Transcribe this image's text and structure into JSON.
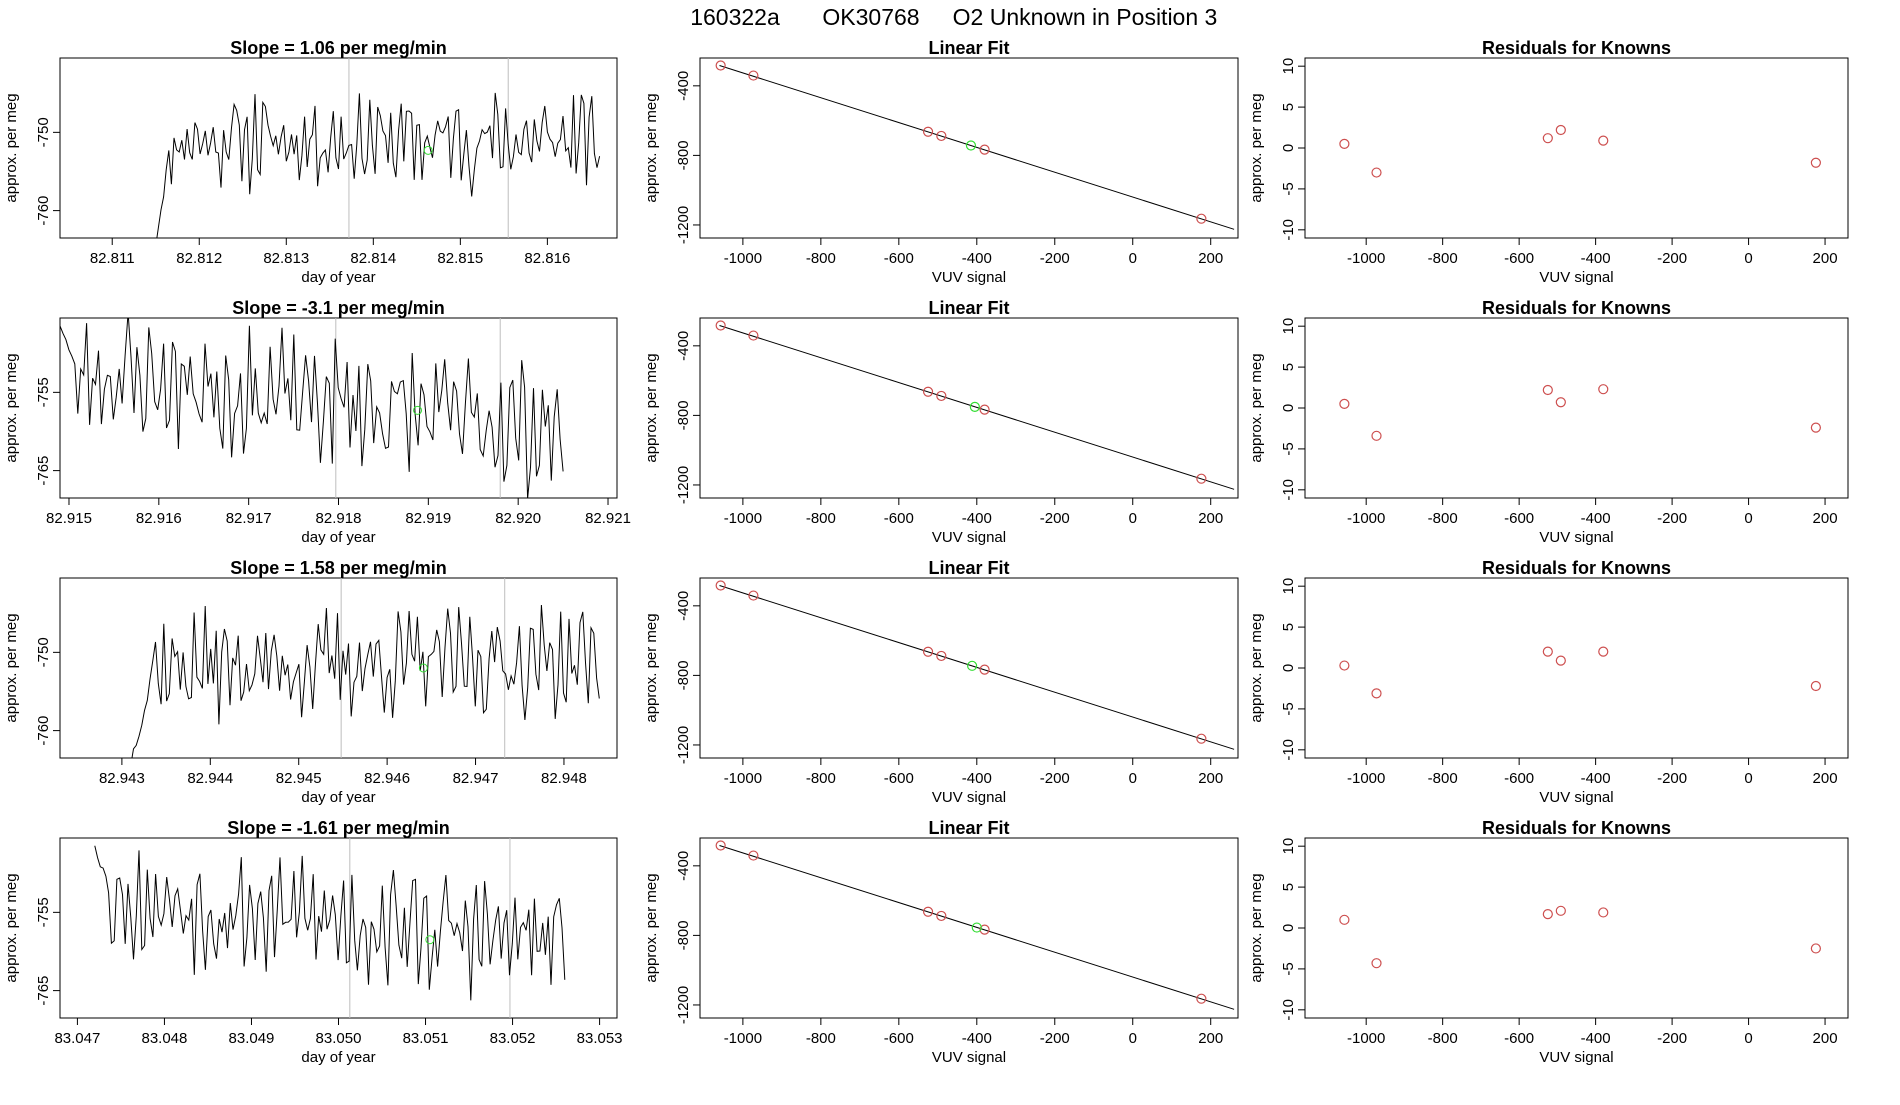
{
  "header": {
    "run": "160322a",
    "tank": "OK30768",
    "description": "O2 Unknown in Position  3"
  },
  "chart_data": [
    {
      "type": "line",
      "title": "Slope =  1.06  per meg/min",
      "xlabel": "day of year",
      "ylabel": "approx. per meg",
      "xlim": [
        82.8104,
        82.8168
      ],
      "ylim": [
        -763.5,
        -740.5
      ],
      "xticks": [
        "82.811",
        "82.812",
        "82.813",
        "82.814",
        "82.815",
        "82.816"
      ],
      "xtick_values": [
        82.811,
        82.812,
        82.813,
        82.814,
        82.815,
        82.816
      ],
      "yticks": [
        "-750",
        "-760"
      ],
      "ytick_values": [
        -750,
        -760
      ],
      "trace": {
        "start": 82.8115,
        "end": 82.8166,
        "base": -751,
        "amplitude": 4.5,
        "seed": 11,
        "lead_from": -764,
        "lead_to": -753,
        "drift": 0
      },
      "vlines": [
        82.81372,
        82.81555
      ],
      "unknown_point": {
        "x": 82.81463,
        "y": -752.3
      }
    },
    {
      "type": "line",
      "title": "Slope =  -3.1  per meg/min",
      "xlabel": "day of year",
      "ylabel": "approx. per meg",
      "xlim": [
        82.9149,
        82.9211
      ],
      "ylim": [
        -768.5,
        -745.5
      ],
      "xticks": [
        "82.915",
        "82.916",
        "82.917",
        "82.918",
        "82.919",
        "82.920",
        "82.921"
      ],
      "xtick_values": [
        82.915,
        82.916,
        82.917,
        82.918,
        82.919,
        82.92,
        82.921
      ],
      "yticks": [
        "-755",
        "-765"
      ],
      "ytick_values": [
        -755,
        -765
      ],
      "trace": {
        "start": 82.9149,
        "end": 82.9205,
        "base": -752,
        "amplitude": 6,
        "seed": 23,
        "lead_from": -746,
        "lead_to": -752,
        "drift": -8
      },
      "vlines": [
        82.91797,
        82.9198
      ],
      "unknown_point": {
        "x": 82.91888,
        "y": -757.3
      }
    },
    {
      "type": "line",
      "title": "Slope =  1.58  per meg/min",
      "xlabel": "day of year",
      "ylabel": "approx. per meg",
      "xlim": [
        82.9423,
        82.9486
      ],
      "ylim": [
        -763.5,
        -740.5
      ],
      "xticks": [
        "82.943",
        "82.944",
        "82.945",
        "82.946",
        "82.947",
        "82.948"
      ],
      "xtick_values": [
        82.943,
        82.944,
        82.945,
        82.946,
        82.947,
        82.948
      ],
      "yticks": [
        "-750",
        "-760"
      ],
      "ytick_values": [
        -750,
        -760
      ],
      "trace": {
        "start": 82.9431,
        "end": 82.9484,
        "base": -752,
        "amplitude": 5,
        "seed": 37,
        "lead_from": -764,
        "lead_to": -757,
        "drift": 1
      },
      "vlines": [
        82.94548,
        82.94733
      ],
      "unknown_point": {
        "x": 82.94641,
        "y": -752.0
      }
    },
    {
      "type": "line",
      "title": "Slope =  -1.61  per meg/min",
      "xlabel": "day of year",
      "ylabel": "approx. per meg",
      "xlim": [
        83.0468,
        83.0532
      ],
      "ylim": [
        -768.5,
        -745.5
      ],
      "xticks": [
        "83.047",
        "83.048",
        "83.049",
        "83.050",
        "83.051",
        "83.052",
        "83.053"
      ],
      "xtick_values": [
        83.047,
        83.048,
        83.049,
        83.05,
        83.051,
        83.052,
        83.053
      ],
      "yticks": [
        "-755",
        "-765"
      ],
      "ytick_values": [
        -755,
        -765
      ],
      "trace": {
        "start": 83.0472,
        "end": 83.0526,
        "base": -753,
        "amplitude": 5.5,
        "seed": 53,
        "lead_from": -746,
        "lead_to": -752,
        "drift": -6
      },
      "vlines": [
        83.05013,
        83.05197
      ],
      "unknown_point": {
        "x": 83.05105,
        "y": -758.5
      }
    },
    {
      "type": "scatter",
      "title": "Linear Fit",
      "xlabel": "VUV signal",
      "ylabel": "approx. per meg",
      "xlim": [
        -1110,
        270
      ],
      "ylim": [
        -1275,
        -240
      ],
      "xticks": [
        "-1000",
        "-800",
        "-600",
        "-400",
        "-200",
        "0",
        "200"
      ],
      "xtick_values": [
        -1000,
        -800,
        -600,
        -400,
        -200,
        0,
        200
      ],
      "yticks": [
        "-400",
        "-800",
        "-1200"
      ],
      "ytick_values": [
        -400,
        -800,
        -1200
      ],
      "fit_line": {
        "x": [
          -1060,
          260
        ],
        "y": [
          -283,
          -1225
        ]
      },
      "knowns": {
        "x": [
          -1057,
          -973,
          -525,
          -491,
          -380,
          176
        ],
        "y": [
          -283,
          -341,
          -664,
          -688,
          -767,
          -1164
        ]
      },
      "unknown": {
        "x": [
          -415
        ],
        "y": [
          -743
        ]
      }
    },
    {
      "type": "scatter",
      "title": "Linear Fit",
      "xlabel": "VUV signal",
      "ylabel": "approx. per meg",
      "xlim": [
        -1110,
        270
      ],
      "ylim": [
        -1275,
        -240
      ],
      "xticks": [
        "-1000",
        "-800",
        "-600",
        "-400",
        "-200",
        "0",
        "200"
      ],
      "xtick_values": [
        -1000,
        -800,
        -600,
        -400,
        -200,
        0,
        200
      ],
      "yticks": [
        "-400",
        "-800",
        "-1200"
      ],
      "ytick_values": [
        -400,
        -800,
        -1200
      ],
      "fit_line": {
        "x": [
          -1060,
          260
        ],
        "y": [
          -283,
          -1225
        ]
      },
      "knowns": {
        "x": [
          -1057,
          -973,
          -525,
          -491,
          -380,
          176
        ],
        "y": [
          -283,
          -341,
          -664,
          -688,
          -767,
          -1164
        ]
      },
      "unknown": {
        "x": [
          -405
        ],
        "y": [
          -751
        ]
      }
    },
    {
      "type": "scatter",
      "title": "Linear Fit",
      "xlabel": "VUV signal",
      "ylabel": "approx. per meg",
      "xlim": [
        -1110,
        270
      ],
      "ylim": [
        -1275,
        -240
      ],
      "xticks": [
        "-1000",
        "-800",
        "-600",
        "-400",
        "-200",
        "0",
        "200"
      ],
      "xtick_values": [
        -1000,
        -800,
        -600,
        -400,
        -200,
        0,
        200
      ],
      "yticks": [
        "-400",
        "-800",
        "-1200"
      ],
      "ytick_values": [
        -400,
        -800,
        -1200
      ],
      "fit_line": {
        "x": [
          -1060,
          260
        ],
        "y": [
          -283,
          -1225
        ]
      },
      "knowns": {
        "x": [
          -1057,
          -973,
          -525,
          -491,
          -380,
          176
        ],
        "y": [
          -283,
          -341,
          -664,
          -688,
          -767,
          -1164
        ]
      },
      "unknown": {
        "x": [
          -412
        ],
        "y": [
          -745
        ]
      }
    },
    {
      "type": "scatter",
      "title": "Linear Fit",
      "xlabel": "VUV signal",
      "ylabel": "approx. per meg",
      "xlim": [
        -1110,
        270
      ],
      "ylim": [
        -1275,
        -240
      ],
      "xticks": [
        "-1000",
        "-800",
        "-600",
        "-400",
        "-200",
        "0",
        "200"
      ],
      "xtick_values": [
        -1000,
        -800,
        -600,
        -400,
        -200,
        0,
        200
      ],
      "yticks": [
        "-400",
        "-800",
        "-1200"
      ],
      "ytick_values": [
        -400,
        -800,
        -1200
      ],
      "fit_line": {
        "x": [
          -1060,
          260
        ],
        "y": [
          -283,
          -1225
        ]
      },
      "knowns": {
        "x": [
          -1057,
          -973,
          -525,
          -491,
          -380,
          176
        ],
        "y": [
          -283,
          -341,
          -664,
          -688,
          -767,
          -1164
        ]
      },
      "unknown": {
        "x": [
          -400
        ],
        "y": [
          -755
        ]
      }
    },
    {
      "type": "scatter",
      "title": "Residuals for Knowns",
      "xlabel": "VUV signal",
      "ylabel": "approx. per meg",
      "xlim": [
        -1160,
        260
      ],
      "ylim": [
        -11,
        11
      ],
      "xticks": [
        "-1000",
        "-800",
        "-600",
        "-400",
        "-200",
        "0",
        "200"
      ],
      "xtick_values": [
        -1000,
        -800,
        -600,
        -400,
        -200,
        0,
        200
      ],
      "yticks": [
        "10",
        "5",
        "0",
        "-5",
        "-10"
      ],
      "ytick_values": [
        10,
        5,
        0,
        -5,
        -10
      ],
      "knowns": {
        "x": [
          -1057,
          -973,
          -525,
          -491,
          -380,
          176
        ],
        "y": [
          0.5,
          -3.0,
          1.2,
          2.2,
          0.9,
          -1.8
        ]
      }
    },
    {
      "type": "scatter",
      "title": "Residuals for Knowns",
      "xlabel": "VUV signal",
      "ylabel": "approx. per meg",
      "xlim": [
        -1160,
        260
      ],
      "ylim": [
        -11,
        11
      ],
      "xticks": [
        "-1000",
        "-800",
        "-600",
        "-400",
        "-200",
        "0",
        "200"
      ],
      "xtick_values": [
        -1000,
        -800,
        -600,
        -400,
        -200,
        0,
        200
      ],
      "yticks": [
        "10",
        "5",
        "0",
        "-5",
        "-10"
      ],
      "ytick_values": [
        10,
        5,
        0,
        -5,
        -10
      ],
      "knowns": {
        "x": [
          -1057,
          -973,
          -525,
          -491,
          -380,
          176
        ],
        "y": [
          0.5,
          -3.4,
          2.2,
          0.7,
          2.3,
          -2.4
        ]
      }
    },
    {
      "type": "scatter",
      "title": "Residuals for Knowns",
      "xlabel": "VUV signal",
      "ylabel": "approx. per meg",
      "xlim": [
        -1160,
        260
      ],
      "ylim": [
        -11,
        11
      ],
      "xticks": [
        "-1000",
        "-800",
        "-600",
        "-400",
        "-200",
        "0",
        "200"
      ],
      "xtick_values": [
        -1000,
        -800,
        -600,
        -400,
        -200,
        0,
        200
      ],
      "yticks": [
        "10",
        "5",
        "0",
        "-5",
        "-10"
      ],
      "ytick_values": [
        10,
        5,
        0,
        -5,
        -10
      ],
      "knowns": {
        "x": [
          -1057,
          -973,
          -525,
          -491,
          -380,
          176
        ],
        "y": [
          0.3,
          -3.1,
          2.0,
          0.9,
          2.0,
          -2.2
        ]
      }
    },
    {
      "type": "scatter",
      "title": "Residuals for Knowns",
      "xlabel": "VUV signal",
      "ylabel": "approx. per meg",
      "xlim": [
        -1160,
        260
      ],
      "ylim": [
        -11,
        11
      ],
      "xticks": [
        "-1000",
        "-800",
        "-600",
        "-400",
        "-200",
        "0",
        "200"
      ],
      "xtick_values": [
        -1000,
        -800,
        -600,
        -400,
        -200,
        0,
        200
      ],
      "yticks": [
        "10",
        "5",
        "0",
        "-5",
        "-10"
      ],
      "ytick_values": [
        10,
        5,
        0,
        -5,
        -10
      ],
      "knowns": {
        "x": [
          -1057,
          -973,
          -525,
          -491,
          -380,
          176
        ],
        "y": [
          1.0,
          -4.3,
          1.7,
          2.1,
          1.9,
          -2.5
        ]
      }
    }
  ],
  "colors": {
    "axis": "#000000",
    "trace": "#000000",
    "vline": "#bebebe",
    "known_point": "#cd4f4f",
    "unknown_point": "#33dd33"
  }
}
